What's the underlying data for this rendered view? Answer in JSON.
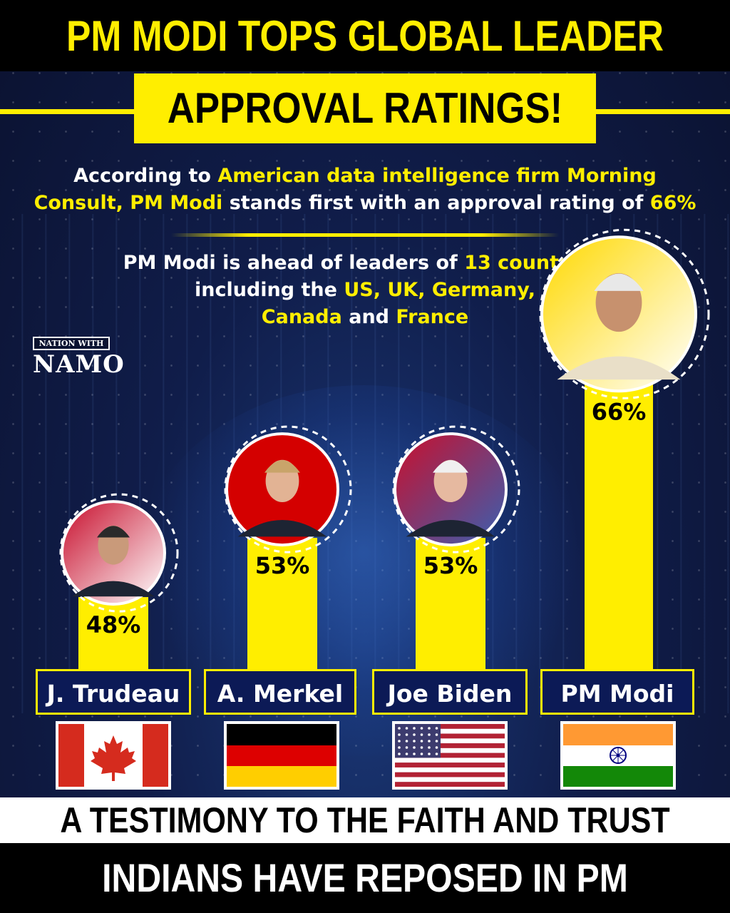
{
  "header": {
    "title_line1": "PM MODI TOPS GLOBAL LEADER",
    "title_line2": "APPROVAL RATINGS!"
  },
  "intro": {
    "p1": [
      "According to ",
      "American data intelligence firm Morning",
      " ",
      "Consult, PM Modi",
      " stands first with an approval rating of ",
      "66%"
    ],
    "p2a": [
      "PM Modi is ahead of leaders of ",
      "13 countries",
      ","
    ],
    "p2b": [
      "including the ",
      "US, UK, Germany,"
    ],
    "p2c": [
      "Canada",
      " and ",
      "France"
    ]
  },
  "logo": {
    "top": "NATION WITH",
    "main": "NAMO"
  },
  "chart_data": {
    "type": "bar",
    "categories": [
      "J. Trudeau",
      "A. Merkel",
      "Joe Biden",
      "PM Modi"
    ],
    "values": [
      48,
      53,
      53,
      66
    ],
    "value_labels": [
      "48%",
      "53%",
      "53%",
      "66%"
    ],
    "ylabel": "",
    "title": ""
  },
  "flags": [
    "canada-flag",
    "germany-flag",
    "usa-flag",
    "india-flag"
  ],
  "colors": {
    "accent": "#ffee00",
    "background": "#101d4a",
    "name_box": "#0c1a56"
  },
  "footer": {
    "line1": "A TESTIMONY TO THE FAITH AND TRUST THAT",
    "line2": "INDIANS HAVE REPOSED IN PM MODI!"
  }
}
